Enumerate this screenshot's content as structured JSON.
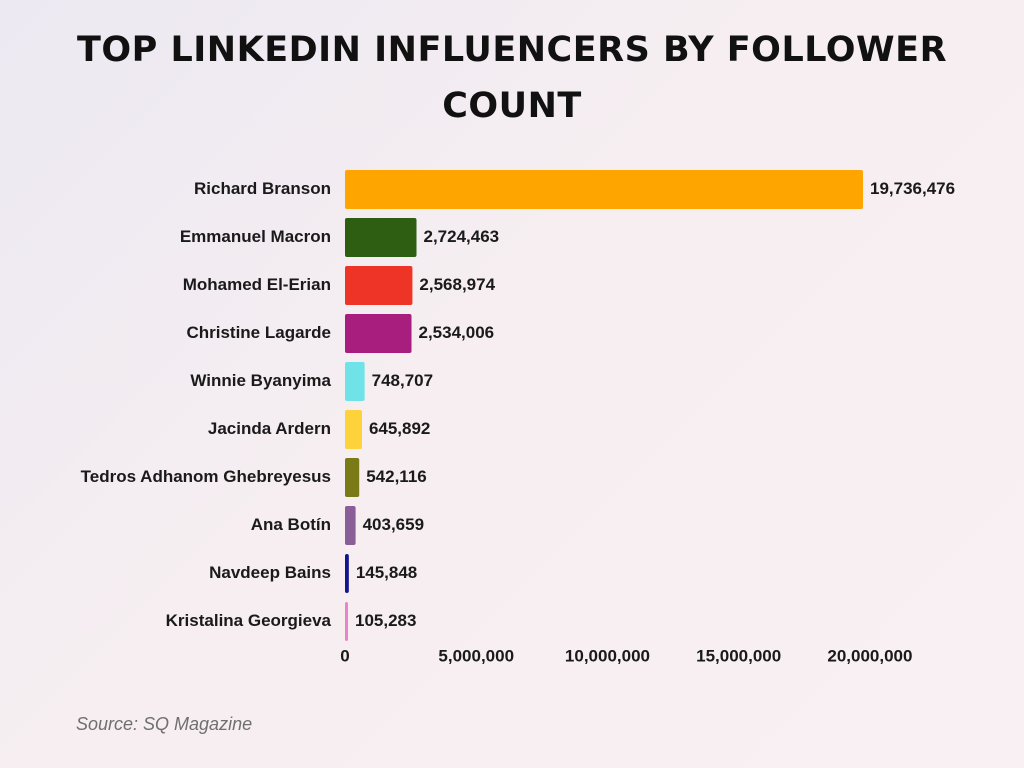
{
  "chart_data": {
    "type": "bar",
    "orientation": "horizontal",
    "title": "TOP LINKEDIN INFLUENCERS BY FOLLOWER COUNT",
    "xlabel": "",
    "ylabel": "",
    "xlim": [
      0,
      20000000
    ],
    "x_ticks": [
      0,
      5000000,
      10000000,
      15000000,
      20000000
    ],
    "x_tick_labels": [
      "0",
      "5,000,000",
      "10,000,000",
      "15,000,000",
      "20,000,000"
    ],
    "grid": false,
    "legend": "none",
    "categories": [
      "Richard Branson",
      "Emmanuel Macron",
      "Mohamed El-Erian",
      "Christine Lagarde",
      "Winnie Byanyima",
      "Jacinda Ardern",
      "Tedros Adhanom Ghebreyesus",
      "Ana Botín",
      "Navdeep Bains",
      "Kristalina Georgieva"
    ],
    "values": [
      19736476,
      2724463,
      2568974,
      2534006,
      748707,
      645892,
      542116,
      403659,
      145848,
      105283
    ],
    "value_labels": [
      "19,736,476",
      "2,724,463",
      "2,568,974",
      "2,534,006",
      "748,707",
      "645,892",
      "542,116",
      "403,659",
      "145,848",
      "105,283"
    ],
    "colors": [
      "#FFA500",
      "#2E5E12",
      "#EE3327",
      "#A81E7F",
      "#6FE3E8",
      "#FDD23A",
      "#7A7A16",
      "#8A5E96",
      "#14148C",
      "#EE82C8"
    ]
  },
  "source": "Source: SQ Magazine"
}
